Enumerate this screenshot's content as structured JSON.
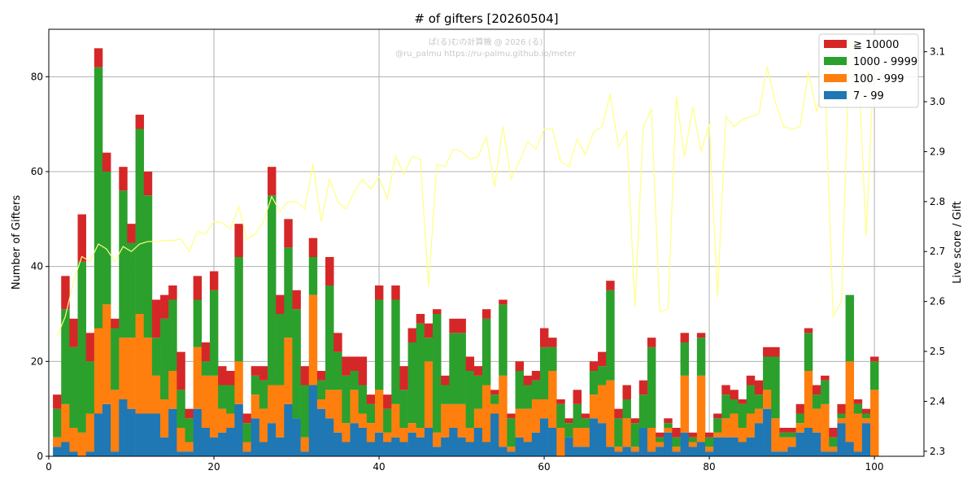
{
  "chart_data": {
    "type": "bar",
    "stacked": true,
    "title": "# of gifters [20260504]",
    "xlabel": "",
    "ylabel": "Number of Gifters",
    "y2label": "Live score / Gift",
    "xlim": [
      0,
      106
    ],
    "ylim": [
      0,
      90
    ],
    "y2lim": [
      2.29,
      3.145
    ],
    "xticks": [
      0,
      20,
      40,
      60,
      80,
      100
    ],
    "yticks": [
      0,
      20,
      40,
      60,
      80
    ],
    "y2ticks": [
      2.3,
      2.4,
      2.5,
      2.6,
      2.7,
      2.8,
      2.9,
      3.0,
      3.1
    ],
    "grid": true,
    "legend_position": "top-right",
    "watermark": [
      "ぱ(る)むの計算機 @ 2026 (る)",
      "@ru_palmu  https://ru-palmu.github.io/meter"
    ],
    "x": [
      1,
      2,
      3,
      4,
      5,
      6,
      7,
      8,
      9,
      10,
      11,
      12,
      13,
      14,
      15,
      16,
      17,
      18,
      19,
      20,
      21,
      22,
      23,
      24,
      25,
      26,
      27,
      28,
      29,
      30,
      31,
      32,
      33,
      34,
      35,
      36,
      37,
      38,
      39,
      40,
      41,
      42,
      43,
      44,
      45,
      46,
      47,
      48,
      49,
      50,
      51,
      52,
      53,
      54,
      55,
      56,
      57,
      58,
      59,
      60,
      61,
      62,
      63,
      64,
      65,
      66,
      67,
      68,
      69,
      70,
      71,
      72,
      73,
      74,
      75,
      76,
      77,
      78,
      79,
      80,
      81,
      82,
      83,
      84,
      85,
      86,
      87,
      88,
      89,
      90,
      91,
      92,
      93,
      94,
      95,
      96,
      97,
      98,
      99,
      100
    ],
    "series": [
      {
        "name": "7 - 99",
        "color": "#1f77b4",
        "values": [
          2,
          3,
          1,
          0,
          1,
          9,
          11,
          1,
          12,
          10,
          9,
          9,
          9,
          4,
          10,
          1,
          1,
          10,
          6,
          4,
          5,
          6,
          11,
          1,
          8,
          3,
          7,
          4,
          11,
          8,
          1,
          15,
          10,
          8,
          5,
          3,
          7,
          6,
          3,
          5,
          3,
          4,
          3,
          5,
          4,
          6,
          2,
          4,
          6,
          4,
          3,
          6,
          3,
          9,
          2,
          1,
          4,
          3,
          5,
          8,
          6,
          0,
          4,
          2,
          2,
          8,
          7,
          2,
          1,
          2,
          1,
          6,
          1,
          2,
          5,
          1,
          5,
          2,
          3,
          1,
          4,
          4,
          4,
          3,
          4,
          7,
          10,
          1,
          1,
          2,
          5,
          6,
          5,
          1,
          1,
          7,
          3,
          1,
          7,
          0
        ]
      },
      {
        "name": "100 - 999",
        "color": "#ff7f0e",
        "values": [
          2,
          8,
          5,
          5,
          8,
          18,
          21,
          13,
          13,
          15,
          21,
          16,
          8,
          8,
          8,
          5,
          2,
          13,
          11,
          13,
          5,
          3,
          9,
          2,
          5,
          7,
          8,
          11,
          14,
          0,
          3,
          19,
          2,
          6,
          9,
          4,
          7,
          3,
          4,
          9,
          2,
          7,
          3,
          2,
          2,
          14,
          3,
          7,
          5,
          7,
          3,
          4,
          12,
          2,
          15,
          1,
          6,
          7,
          7,
          4,
          12,
          6,
          0,
          4,
          4,
          5,
          8,
          14,
          1,
          6,
          1,
          0,
          5,
          1,
          1,
          1,
          12,
          1,
          14,
          1,
          1,
          4,
          5,
          3,
          5,
          3,
          4,
          7,
          3,
          2,
          2,
          12,
          5,
          10,
          1,
          1,
          17,
          8,
          1,
          14
        ]
      },
      {
        "name": "1000 - 9999",
        "color": "#2ca02c",
        "values": [
          6,
          20,
          17,
          36,
          11,
          55,
          28,
          13,
          31,
          20,
          39,
          30,
          8,
          17,
          15,
          8,
          5,
          10,
          3,
          18,
          5,
          6,
          22,
          4,
          4,
          6,
          40,
          15,
          19,
          23,
          11,
          8,
          4,
          22,
          8,
          10,
          4,
          6,
          4,
          19,
          5,
          22,
          8,
          17,
          22,
          5,
          25,
          4,
          15,
          15,
          12,
          7,
          14,
          2,
          15,
          6,
          8,
          5,
          4,
          11,
          5,
          5,
          3,
          5,
          2,
          5,
          4,
          19,
          6,
          4,
          5,
          7,
          17,
          1,
          1,
          2,
          7,
          1,
          8,
          2,
          3,
          5,
          3,
          5,
          6,
          3,
          7,
          13,
          1,
          1,
          2,
          8,
          3,
          5,
          2,
          1,
          14,
          2,
          1,
          6
        ]
      },
      {
        "name": "≧ 10000",
        "color": "#d62728",
        "values": [
          3,
          7,
          6,
          10,
          6,
          4,
          4,
          2,
          5,
          4,
          3,
          5,
          8,
          5,
          3,
          8,
          2,
          5,
          4,
          4,
          4,
          3,
          7,
          2,
          2,
          3,
          6,
          4,
          6,
          4,
          4,
          4,
          2,
          6,
          4,
          4,
          3,
          6,
          2,
          3,
          3,
          3,
          5,
          3,
          2,
          3,
          1,
          2,
          3,
          3,
          3,
          2,
          2,
          1,
          1,
          1,
          2,
          2,
          2,
          4,
          2,
          1,
          1,
          3,
          1,
          2,
          3,
          2,
          2,
          3,
          1,
          3,
          2,
          1,
          1,
          2,
          2,
          1,
          1,
          1,
          1,
          2,
          2,
          1,
          2,
          3,
          2,
          2,
          1,
          1,
          2,
          1,
          2,
          1,
          2,
          2,
          0,
          1,
          1,
          1
        ]
      }
    ],
    "score_line": {
      "color": "#ffff80",
      "values": [
        2.53,
        2.57,
        2.64,
        2.69,
        2.68,
        2.715,
        2.705,
        2.68,
        2.71,
        2.7,
        2.715,
        2.72,
        2.72,
        2.722,
        2.722,
        2.725,
        2.7,
        2.74,
        2.735,
        2.76,
        2.758,
        2.745,
        2.79,
        2.725,
        2.735,
        2.76,
        2.81,
        2.78,
        2.8,
        2.8,
        2.785,
        2.875,
        2.76,
        2.845,
        2.8,
        2.785,
        2.82,
        2.845,
        2.825,
        2.85,
        2.805,
        2.89,
        2.855,
        2.89,
        2.885,
        2.63,
        2.875,
        2.87,
        2.905,
        2.9,
        2.885,
        2.89,
        2.93,
        2.83,
        2.95,
        2.845,
        2.88,
        2.92,
        2.905,
        2.945,
        2.945,
        2.88,
        2.87,
        2.925,
        2.895,
        2.94,
        2.95,
        3.015,
        2.91,
        2.94,
        2.59,
        2.95,
        2.985,
        2.58,
        2.585,
        3.01,
        2.89,
        2.99,
        2.9,
        2.955,
        2.61,
        2.97,
        2.95,
        2.965,
        2.97,
        2.975,
        3.07,
        3.0,
        2.95,
        2.945,
        2.95,
        3.06,
        2.98,
        3.05,
        2.57,
        2.6,
        3.12,
        3.1,
        2.73,
        3.1
      ]
    }
  }
}
